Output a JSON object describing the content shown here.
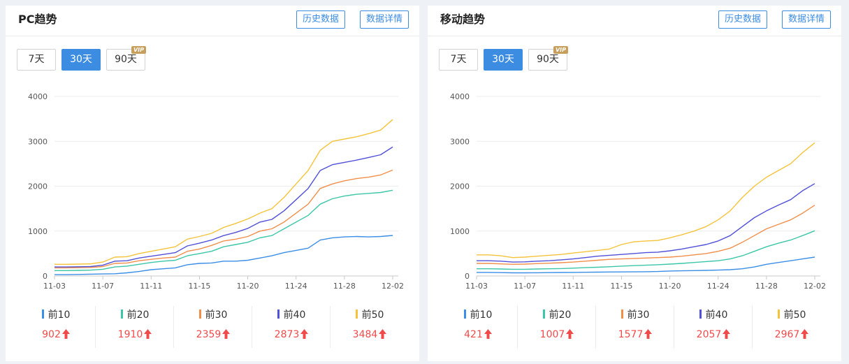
{
  "panels": [
    {
      "title": "PC趋势",
      "history_label": "历史数据",
      "detail_label": "数据详情",
      "ranges": [
        "7天",
        "30天",
        "90天"
      ],
      "vip_label": "VIP",
      "selected_range": "30天",
      "legend": [
        {
          "label": "前10",
          "value": "902"
        },
        {
          "label": "前20",
          "value": "1910"
        },
        {
          "label": "前30",
          "value": "2359"
        },
        {
          "label": "前40",
          "value": "2873"
        },
        {
          "label": "前50",
          "value": "3484"
        }
      ]
    },
    {
      "title": "移动趋势",
      "history_label": "历史数据",
      "detail_label": "数据详情",
      "ranges": [
        "7天",
        "30天",
        "90天"
      ],
      "vip_label": "VIP",
      "selected_range": "30天",
      "legend": [
        {
          "label": "前10",
          "value": "421"
        },
        {
          "label": "前20",
          "value": "1007"
        },
        {
          "label": "前30",
          "value": "1577"
        },
        {
          "label": "前40",
          "value": "2057"
        },
        {
          "label": "前50",
          "value": "2967"
        }
      ]
    }
  ],
  "colors": {
    "accent": "#3c8de1",
    "up_arrow": "#f04a4a",
    "series": [
      "#3a8ee6",
      "#3cc6a9",
      "#f08f4a",
      "#5051d8",
      "#f5c33b"
    ]
  },
  "chart_data": [
    {
      "type": "line",
      "title": "PC趋势",
      "xlabel": "",
      "ylabel": "",
      "ylim": [
        0,
        4000
      ],
      "yticks": [
        "0",
        "1000",
        "2000",
        "3000",
        "4000"
      ],
      "x_tick_labels": [
        "11-03",
        "11-07",
        "11-11",
        "11-15",
        "11-20",
        "11-24",
        "11-28",
        "12-02"
      ],
      "x_tick_positions": [
        0,
        4,
        8,
        12,
        16,
        20,
        24,
        28
      ],
      "grid": true,
      "series": [
        {
          "name": "前10",
          "values": [
            30,
            30,
            35,
            40,
            45,
            50,
            70,
            100,
            140,
            160,
            180,
            250,
            280,
            290,
            330,
            330,
            350,
            400,
            450,
            520,
            570,
            620,
            800,
            850,
            870,
            880,
            870,
            880,
            902
          ]
        },
        {
          "name": "前20",
          "values": [
            120,
            120,
            125,
            130,
            150,
            200,
            220,
            260,
            300,
            330,
            350,
            450,
            500,
            550,
            650,
            700,
            750,
            850,
            900,
            1050,
            1200,
            1350,
            1600,
            1720,
            1780,
            1820,
            1840,
            1860,
            1910
          ]
        },
        {
          "name": "前30",
          "values": [
            180,
            180,
            185,
            190,
            210,
            280,
            290,
            340,
            370,
            400,
            420,
            550,
            600,
            680,
            780,
            820,
            880,
            1000,
            1050,
            1200,
            1400,
            1600,
            1950,
            2050,
            2120,
            2170,
            2200,
            2250,
            2359
          ]
        },
        {
          "name": "前40",
          "values": [
            200,
            200,
            205,
            210,
            240,
            330,
            340,
            400,
            440,
            480,
            520,
            670,
            730,
            800,
            900,
            970,
            1060,
            1200,
            1260,
            1450,
            1700,
            1950,
            2350,
            2480,
            2530,
            2580,
            2640,
            2700,
            2873
          ]
        },
        {
          "name": "前50",
          "values": [
            260,
            260,
            265,
            270,
            310,
            420,
            430,
            500,
            550,
            600,
            650,
            820,
            880,
            950,
            1080,
            1170,
            1270,
            1400,
            1500,
            1750,
            2050,
            2350,
            2800,
            3000,
            3050,
            3100,
            3170,
            3250,
            3484
          ]
        }
      ]
    },
    {
      "type": "line",
      "title": "移动趋势",
      "xlabel": "",
      "ylabel": "",
      "ylim": [
        0,
        4000
      ],
      "yticks": [
        "0",
        "1000",
        "2000",
        "3000",
        "4000"
      ],
      "x_tick_labels": [
        "11-03",
        "11-07",
        "11-11",
        "11-15",
        "11-20",
        "11-24",
        "11-28",
        "12-02"
      ],
      "x_tick_positions": [
        0,
        4,
        8,
        12,
        16,
        20,
        24,
        28
      ],
      "grid": true,
      "series": [
        {
          "name": "前10",
          "values": [
            80,
            80,
            75,
            70,
            70,
            72,
            75,
            78,
            80,
            82,
            85,
            88,
            90,
            92,
            95,
            100,
            110,
            115,
            120,
            125,
            130,
            140,
            160,
            200,
            260,
            300,
            340,
            380,
            421
          ]
        },
        {
          "name": "前20",
          "values": [
            160,
            160,
            155,
            150,
            150,
            155,
            160,
            165,
            175,
            185,
            195,
            205,
            220,
            230,
            240,
            250,
            265,
            280,
            300,
            320,
            340,
            380,
            450,
            550,
            650,
            730,
            800,
            900,
            1007
          ]
        },
        {
          "name": "前30",
          "values": [
            280,
            280,
            270,
            260,
            265,
            275,
            285,
            295,
            310,
            330,
            350,
            370,
            380,
            390,
            400,
            410,
            420,
            440,
            470,
            500,
            550,
            620,
            750,
            900,
            1050,
            1150,
            1250,
            1400,
            1577
          ]
        },
        {
          "name": "前40",
          "values": [
            340,
            340,
            330,
            310,
            315,
            330,
            340,
            360,
            380,
            410,
            440,
            460,
            480,
            500,
            520,
            530,
            560,
            600,
            650,
            700,
            780,
            900,
            1100,
            1300,
            1450,
            1580,
            1700,
            1900,
            2057
          ]
        },
        {
          "name": "前50",
          "values": [
            470,
            470,
            450,
            410,
            420,
            440,
            460,
            480,
            510,
            540,
            570,
            600,
            700,
            760,
            780,
            790,
            850,
            920,
            1000,
            1100,
            1250,
            1450,
            1750,
            2000,
            2200,
            2350,
            2500,
            2750,
            2967
          ]
        }
      ]
    }
  ]
}
